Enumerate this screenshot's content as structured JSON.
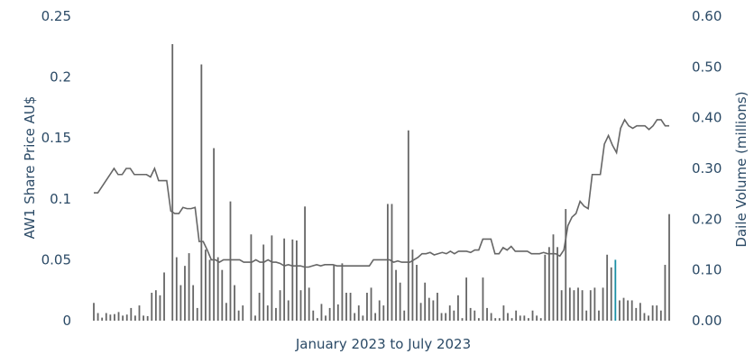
{
  "chart_data": {
    "type": "bar",
    "xlabel": "January 2023 to July 2023",
    "ylabel_left": "AW1 Share Price AU$",
    "ylabel_right": "Daile Volume (millions)",
    "ylim_left": [
      0,
      0.25
    ],
    "ylim_right": [
      0,
      0.6
    ],
    "yticks_left": [
      "0",
      "0.05",
      "0.1",
      "0.15",
      "0.2",
      "0.25"
    ],
    "yticks_right": [
      "0.00",
      "0.10",
      "0.20",
      "0.30",
      "0.40",
      "0.50",
      "0.60"
    ],
    "colors": {
      "line": "#666666",
      "bar": "#666666",
      "highlight_bar": "#1a8fa5",
      "text": "#2b4a66"
    },
    "series": [
      {
        "name": "Share price",
        "axis": "left",
        "kind": "line",
        "values": [
          0.105,
          0.105,
          0.11,
          0.115,
          0.12,
          0.125,
          0.12,
          0.12,
          0.125,
          0.125,
          0.12,
          0.12,
          0.12,
          0.12,
          0.118,
          0.125,
          0.115,
          0.115,
          0.115,
          0.09,
          0.088,
          0.088,
          0.093,
          0.092,
          0.092,
          0.093,
          0.065,
          0.065,
          0.058,
          0.05,
          0.05,
          0.048,
          0.05,
          0.05,
          0.05,
          0.05,
          0.05,
          0.048,
          0.048,
          0.048,
          0.05,
          0.048,
          0.048,
          0.05,
          0.048,
          0.048,
          0.047,
          0.045,
          0.046,
          0.045,
          0.045,
          0.045,
          0.044,
          0.044,
          0.045,
          0.046,
          0.045,
          0.046,
          0.046,
          0.046,
          0.045,
          0.045,
          0.045,
          0.045,
          0.045,
          0.045,
          0.045,
          0.045,
          0.045,
          0.05,
          0.05,
          0.05,
          0.05,
          0.05,
          0.048,
          0.049,
          0.048,
          0.048,
          0.048,
          0.05,
          0.052,
          0.055,
          0.055,
          0.056,
          0.054,
          0.055,
          0.056,
          0.055,
          0.057,
          0.055,
          0.057,
          0.057,
          0.057,
          0.056,
          0.058,
          0.058,
          0.067,
          0.067,
          0.067,
          0.055,
          0.055,
          0.06,
          0.058,
          0.061,
          0.057,
          0.057,
          0.057,
          0.057,
          0.055,
          0.055,
          0.055,
          0.056,
          0.055,
          0.055,
          0.055,
          0.053,
          0.058,
          0.078,
          0.085,
          0.088,
          0.098,
          0.094,
          0.092,
          0.12,
          0.12,
          0.12,
          0.145,
          0.152,
          0.144,
          0.138,
          0.158,
          0.165,
          0.16,
          0.158,
          0.16,
          0.16,
          0.16,
          0.157,
          0.16,
          0.165,
          0.165,
          0.16,
          0.16
        ]
      },
      {
        "name": "Daily volume",
        "axis": "right",
        "kind": "bar",
        "values": [
          0.035,
          0.015,
          0.006,
          0.015,
          0.012,
          0.013,
          0.017,
          0.01,
          0.012,
          0.025,
          0.01,
          0.03,
          0.01,
          0.009,
          0.055,
          0.06,
          0.05,
          0.095,
          0.0,
          0.545,
          0.125,
          0.07,
          0.108,
          0.133,
          0.07,
          0.025,
          0.505,
          0.14,
          0.12,
          0.34,
          0.125,
          0.1,
          0.035,
          0.235,
          0.07,
          0.02,
          0.03,
          0.0,
          0.17,
          0.01,
          0.055,
          0.15,
          0.03,
          0.168,
          0.025,
          0.06,
          0.162,
          0.04,
          0.16,
          0.158,
          0.06,
          0.225,
          0.065,
          0.02,
          0.005,
          0.033,
          0.01,
          0.025,
          0.11,
          0.032,
          0.113,
          0.055,
          0.055,
          0.015,
          0.03,
          0.01,
          0.055,
          0.065,
          0.015,
          0.04,
          0.03,
          0.23,
          0.23,
          0.1,
          0.075,
          0.02,
          0.375,
          0.14,
          0.11,
          0.035,
          0.075,
          0.045,
          0.04,
          0.055,
          0.015,
          0.015,
          0.03,
          0.02,
          0.05,
          0.005,
          0.085,
          0.025,
          0.02,
          0.005,
          0.085,
          0.025,
          0.015,
          0.005,
          0.005,
          0.03,
          0.015,
          0.005,
          0.02,
          0.01,
          0.01,
          0.005,
          0.02,
          0.01,
          0.005,
          0.13,
          0.145,
          0.17,
          0.145,
          0.06,
          0.22,
          0.065,
          0.06,
          0.065,
          0.06,
          0.02,
          0.06,
          0.065,
          0.02,
          0.065,
          0.13,
          0.105,
          0.12,
          0.04,
          0.045,
          0.04,
          0.04,
          0.025,
          0.035,
          0.015,
          0.01,
          0.03,
          0.03,
          0.02,
          0.11,
          0.21
        ],
        "highlight_index": 126
      }
    ]
  }
}
